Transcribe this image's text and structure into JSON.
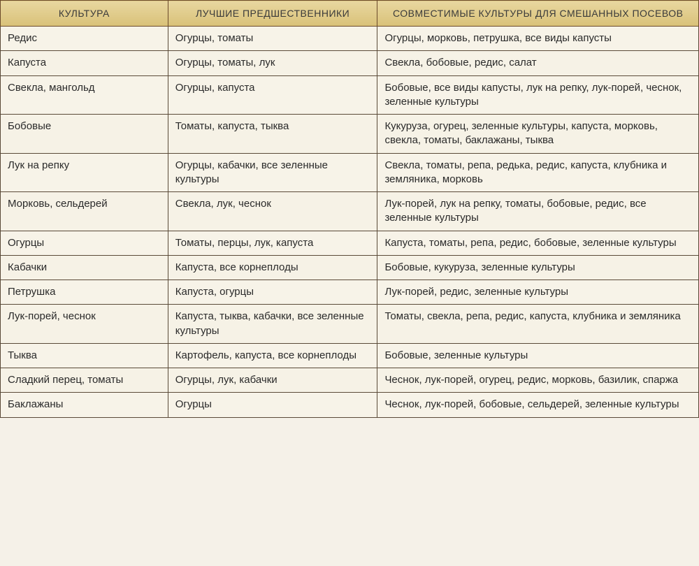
{
  "table": {
    "type": "table",
    "background_color": "#f5f1e4",
    "header_bg_top": "#e8d7a0",
    "header_bg_bottom": "#d9c178",
    "border_color": "#5a4a38",
    "header_fontsize": 14,
    "cell_fontsize": 15,
    "columns": [
      {
        "label": "КУЛЬТУРА",
        "width": "24%"
      },
      {
        "label": "ЛУЧШИЕ ПРЕДШЕСТВЕННИКИ",
        "width": "30%"
      },
      {
        "label": "СОВМЕСТИМЫЕ КУЛЬТУРЫ ДЛЯ СМЕШАННЫХ ПОСЕВОВ",
        "width": "46%"
      }
    ],
    "rows": [
      {
        "c0": "Редис",
        "c1": "Огурцы, томаты",
        "c2": "Огурцы, морковь, петрушка, все виды капусты"
      },
      {
        "c0": "Капуста",
        "c1": "Огурцы, томаты, лук",
        "c2": "Свекла, бобовые, редис, салат"
      },
      {
        "c0": "Свекла, мангольд",
        "c1": "Огурцы, капуста",
        "c2": "Бобовые, все виды капусты, лук на репку, лук-порей, чеснок, зеленные культуры"
      },
      {
        "c0": "Бобовые",
        "c1": "Томаты, капуста, тыква",
        "c2": "Кукуруза, огурец, зеленные культуры, капуста, морковь, свекла, томаты, баклажаны, тыква"
      },
      {
        "c0": "Лук на репку",
        "c1": "Огурцы, кабачки, все зеленные культуры",
        "c2": "Свекла, томаты, репа, редька, редис, капуста, клубника и земляника, морковь"
      },
      {
        "c0": "Морковь, сельдерей",
        "c1": "Свекла, лук, чеснок",
        "c2": "Лук-порей, лук на репку, томаты, бобовые, редис, все зеленные культуры"
      },
      {
        "c0": "Огурцы",
        "c1": "Томаты, перцы, лук, капуста",
        "c2": "Капуста, томаты, репа, редис, бобовые, зеленные культуры"
      },
      {
        "c0": "Кабачки",
        "c1": "Капуста, все корнеплоды",
        "c2": "Бобовые, кукуруза, зеленные культуры"
      },
      {
        "c0": "Петрушка",
        "c1": "Капуста, огурцы",
        "c2": "Лук-порей, редис, зеленные культуры"
      },
      {
        "c0": "Лук-порей, чеснок",
        "c1": "Капуста, тыква, кабачки, все зеленные культуры",
        "c2": "Томаты, свекла, репа, редис, капуста, клубника и земляника"
      },
      {
        "c0": "Тыква",
        "c1": "Картофель, капуста, все корнеплоды",
        "c2": "Бобовые, зеленные культуры"
      },
      {
        "c0": "Сладкий перец, томаты",
        "c1": "Огурцы, лук, кабачки",
        "c2": "Чеснок, лук-порей, огурец, редис, морковь, базилик, спаржа"
      },
      {
        "c0": "Баклажаны",
        "c1": "Огурцы",
        "c2": "Чеснок, лук-порей, бобовые, сельдерей, зеленные культуры"
      }
    ]
  }
}
